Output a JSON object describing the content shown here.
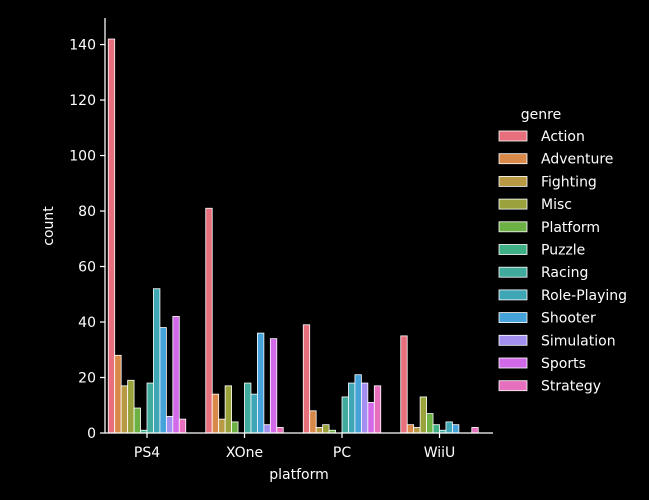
{
  "chart_data": {
    "type": "bar",
    "xlabel": "platform",
    "ylabel": "count",
    "categories": [
      "PS4",
      "XOne",
      "PC",
      "WiiU"
    ],
    "ylim": [
      0,
      150
    ],
    "yticks": [
      0,
      20,
      40,
      60,
      80,
      100,
      120,
      140
    ],
    "grid": false,
    "legend": {
      "title": "genre",
      "placement": "right"
    },
    "series": [
      {
        "name": "Action",
        "color": "#e8707d",
        "values": [
          142,
          81,
          39,
          35
        ]
      },
      {
        "name": "Adventure",
        "color": "#d98a4a",
        "values": [
          28,
          14,
          8,
          3
        ]
      },
      {
        "name": "Fighting",
        "color": "#b89a45",
        "values": [
          17,
          5,
          2,
          2
        ]
      },
      {
        "name": "Misc",
        "color": "#9aa33b",
        "values": [
          19,
          17,
          3,
          13
        ]
      },
      {
        "name": "Platform",
        "color": "#6db043",
        "values": [
          9,
          4,
          1,
          7
        ]
      },
      {
        "name": "Puzzle",
        "color": "#3fb085",
        "values": [
          1,
          0,
          0,
          3
        ]
      },
      {
        "name": "Racing",
        "color": "#40ab9c",
        "values": [
          18,
          18,
          13,
          1
        ]
      },
      {
        "name": "Role-Playing",
        "color": "#3ea6b5",
        "values": [
          52,
          14,
          18,
          4
        ]
      },
      {
        "name": "Shooter",
        "color": "#45a3da",
        "values": [
          38,
          36,
          21,
          3
        ]
      },
      {
        "name": "Simulation",
        "color": "#a38ff0",
        "values": [
          6,
          3,
          18,
          0
        ]
      },
      {
        "name": "Sports",
        "color": "#d169e8",
        "values": [
          42,
          34,
          11,
          0
        ]
      },
      {
        "name": "Strategy",
        "color": "#e670bd",
        "values": [
          5,
          2,
          17,
          2
        ]
      }
    ]
  }
}
